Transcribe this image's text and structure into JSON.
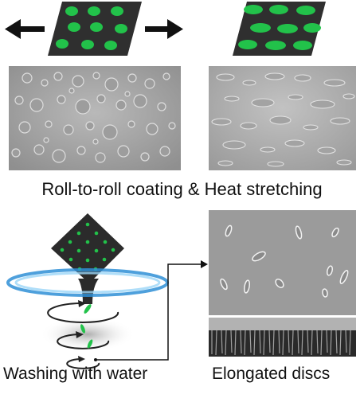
{
  "captions": {
    "roll_to_roll": "Roll-to-roll coating & Heat stretching",
    "washing": "Washing with water",
    "elongated": "Elongated discs"
  },
  "colors": {
    "film": "#2f2f2f",
    "dots": "#22c24a",
    "sem_gray": "#a9a9a9",
    "arrow": "#111111",
    "ring_blue": "#2f8fd6"
  },
  "icons": [
    "left-arrow-icon",
    "right-arrow-icon",
    "connector-arrow-icon",
    "rotation-arrow-icon"
  ]
}
